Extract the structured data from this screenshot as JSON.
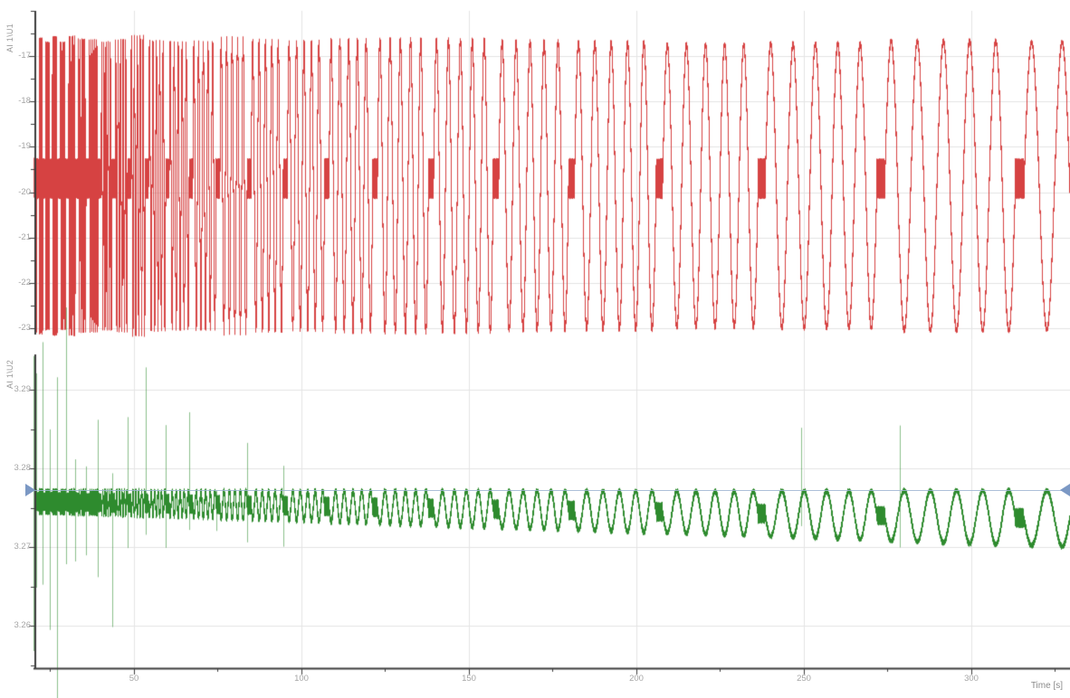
{
  "styles": {
    "background": "#ffffff",
    "grid_color": "#e4e4e4",
    "axis_color": "#3c3c3c",
    "tick_label_color": "#a5a5a5",
    "channel_label_color": "#9a9a9a"
  },
  "chart_data": {
    "type": "line",
    "x_axis": {
      "label": "Time [s]",
      "visible_range": [
        20.3,
        329.5
      ],
      "major_ticks": [
        50,
        100,
        150,
        200,
        250,
        300
      ],
      "minor_ticks": [
        25,
        75,
        125,
        175,
        225,
        275,
        325
      ]
    },
    "sweep": {
      "kind": "stepped-sine-sweep-high-to-low",
      "cycles_per_burst": 5,
      "f_start_hz": 5.5,
      "step_ratio": 0.855,
      "pause_base_s": 0.8,
      "pause_growth_per_s": 0.006,
      "t_start": 20,
      "t_end": 330
    },
    "plots": [
      {
        "channel_label": "AI 1\\U1",
        "color": "#d64242",
        "y_major_ticks": [
          -17,
          -18,
          -19,
          -20,
          -21,
          -22,
          -23
        ],
        "y_minor_step": 0.5,
        "y_visible_range": [
          -16.0,
          -23.14
        ],
        "signal": {
          "center": -19.86,
          "amplitude": 3.2,
          "amplitude_jitter": 0.05,
          "noise_half": 0.035,
          "pause_center": -19.7,
          "pause_half_band": 0.42,
          "initial_spike": {
            "up": 0.62,
            "down": 0.26
          },
          "boundary_spike": {
            "base": 0.22,
            "decay_tau_s": 40,
            "floor": 0.02
          }
        }
      },
      {
        "channel_label": "AI 1\\U2",
        "color": "#2e8b2e",
        "spike_color": "rgba(46,139,46,0.55)",
        "y_major_ticks": [
          3.29,
          3.28,
          3.27,
          3.26
        ],
        "y_minor_step": 0.005,
        "y_visible_range": [
          3.2945,
          3.2545
        ],
        "signal": {
          "center_start": 3.2758,
          "center_end": 3.2736,
          "amplitude_start": 0.0013,
          "amplitude_end": 0.0036,
          "noise_half": 0.00027,
          "pause_half_band": 0.001,
          "initial_spike": {
            "up": 0.0185,
            "down": 0.019
          },
          "boundary_spike": {
            "base": 0.017,
            "decay_tau_s": 35,
            "floor": 0.0012,
            "fade_after_t": 100
          },
          "special_spikes": [
            {
              "t": 249.2,
              "up": 0.011,
              "down": 0.0015
            },
            {
              "t": 278.8,
              "up": 0.0115,
              "down": 0.004
            }
          ]
        }
      }
    ],
    "cursor": {
      "value": 3.2771,
      "handle_color": "#7b98c4",
      "line_color": "#9fb4d2"
    }
  }
}
